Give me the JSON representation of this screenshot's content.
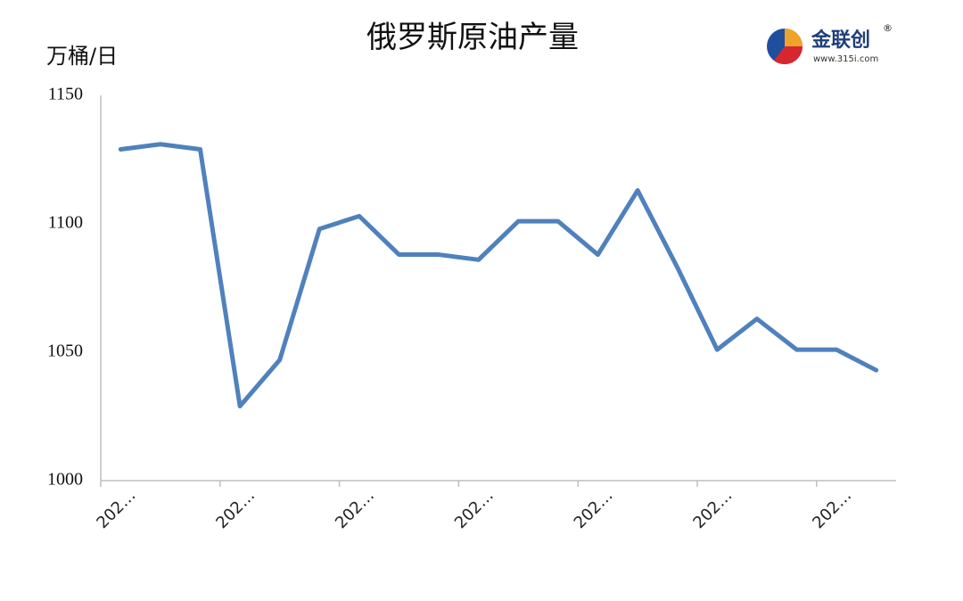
{
  "chart_data": {
    "type": "line",
    "title": "俄罗斯原油产量",
    "y_label": "万桶/日",
    "logo": {
      "name": "金联创",
      "mark": "®",
      "url": "www.315i.com"
    },
    "categories": [
      "202…",
      null,
      null,
      "202…",
      null,
      null,
      "202…",
      null,
      null,
      "202…",
      null,
      null,
      "202…",
      null,
      null,
      "202…",
      null,
      null,
      "202…",
      null
    ],
    "series": [
      {
        "name": "俄罗斯原油产量",
        "color": "#4f81bd",
        "values": [
          1129,
          1131,
          1129,
          1029,
          1047,
          1098,
          1103,
          1088,
          1088,
          1086,
          1101,
          1101,
          1088,
          1113,
          1083,
          1051,
          1063,
          1051,
          1051,
          1043
        ]
      }
    ],
    "ylim": [
      1000,
      1150
    ],
    "yticks": [
      1000,
      1050,
      1100,
      1150
    ],
    "grid": false
  }
}
